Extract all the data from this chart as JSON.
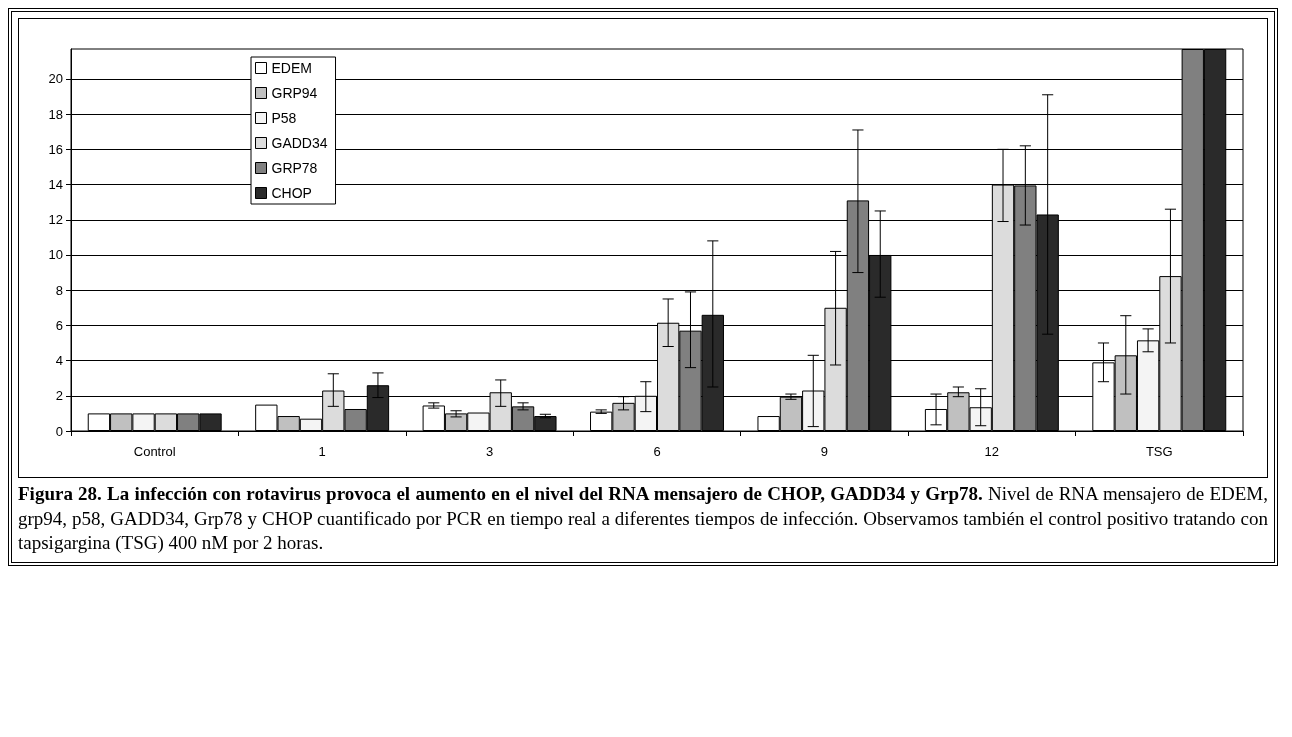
{
  "chart_data": {
    "type": "bar",
    "categories": [
      "Control",
      "1",
      "3",
      "6",
      "9",
      "12",
      "TSG"
    ],
    "series": [
      {
        "name": "EDEM",
        "color": "#ffffff",
        "values": [
          1.0,
          1.5,
          1.45,
          1.1,
          0.85,
          1.25,
          3.9
        ],
        "errors": [
          null,
          null,
          [
            1.3,
            1.6
          ],
          [
            1.0,
            1.2
          ],
          null,
          [
            0.35,
            2.1
          ],
          [
            2.8,
            5.0
          ]
        ]
      },
      {
        "name": "GRP94",
        "color": "#c0c0c0",
        "values": [
          1.0,
          0.85,
          1.0,
          1.6,
          1.95,
          2.2,
          4.3
        ],
        "errors": [
          null,
          null,
          [
            0.8,
            1.15
          ],
          [
            1.2,
            1.95
          ],
          [
            1.8,
            2.1
          ],
          [
            1.95,
            2.5
          ],
          [
            2.1,
            6.55
          ]
        ]
      },
      {
        "name": "P58",
        "color": "#f4f4f4",
        "values": [
          1.0,
          0.7,
          1.05,
          2.0,
          2.3,
          1.35,
          5.15
        ],
        "errors": [
          null,
          null,
          null,
          [
            1.1,
            2.8
          ],
          [
            0.25,
            4.3
          ],
          [
            0.3,
            2.4
          ],
          [
            4.5,
            5.8
          ]
        ]
      },
      {
        "name": "GADD34",
        "color": "#dcdcdc",
        "values": [
          1.0,
          2.3,
          2.2,
          6.15,
          7.0,
          14.0,
          8.8
        ],
        "errors": [
          null,
          [
            1.4,
            3.25
          ],
          [
            1.4,
            2.9
          ],
          [
            4.8,
            7.5
          ],
          [
            3.75,
            10.2
          ],
          [
            11.9,
            16.0
          ],
          [
            5.0,
            12.6
          ]
        ]
      },
      {
        "name": "GRP78",
        "color": "#808080",
        "values": [
          1.0,
          1.25,
          1.4,
          5.7,
          13.1,
          13.95,
          21.7
        ],
        "errors": [
          null,
          null,
          [
            1.2,
            1.6
          ],
          [
            3.6,
            7.9
          ],
          [
            9.0,
            17.1
          ],
          [
            11.7,
            16.2
          ],
          null
        ]
      },
      {
        "name": "CHOP",
        "color": "#2a2a2a",
        "values": [
          1.0,
          2.6,
          0.85,
          6.6,
          10.0,
          12.3,
          21.7
        ],
        "errors": [
          null,
          [
            1.9,
            3.3
          ],
          [
            0.75,
            0.95
          ],
          [
            2.5,
            10.8
          ],
          [
            7.6,
            12.5
          ],
          [
            5.5,
            19.1
          ],
          null
        ]
      }
    ],
    "ylim": [
      0,
      21.7
    ],
    "yticks": [
      0,
      2,
      4,
      6,
      8,
      10,
      12,
      14,
      16,
      18,
      20
    ],
    "grid": "y",
    "legend": "top left",
    "annotations": [
      "Figura 28. La infección con rotavirus provoca el aumento en el nivel del RNA mensajero de CHOP, GADD34 y Grp78.",
      "Nivel de RNA mensajero de EDEM, grp94, p58, GADD34, Grp78 y CHOP cuantificado por PCR en tiempo real a diferentes tiempos de infección. Observamos también el control positivo tratando con tapsigargina (TSG) 400 nM por 2 horas."
    ]
  }
}
